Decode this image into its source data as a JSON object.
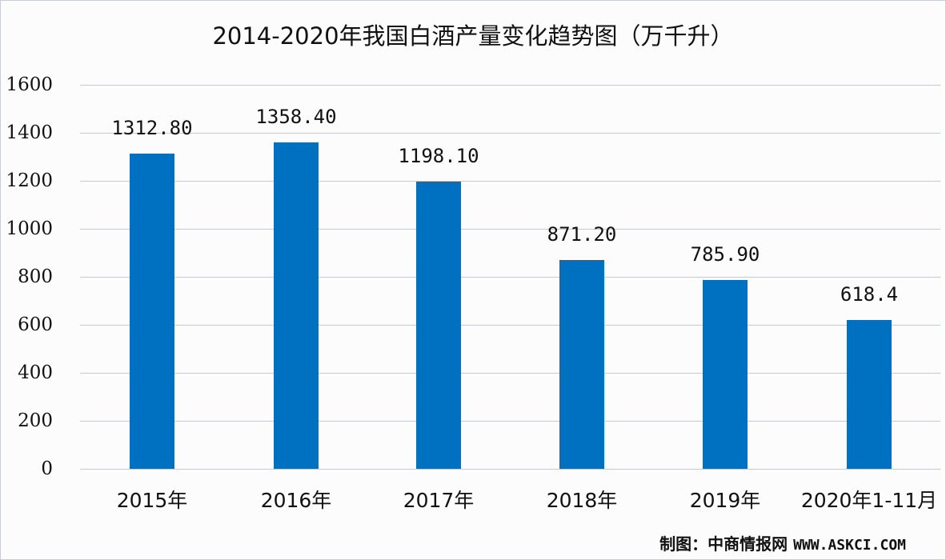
{
  "chart_data": {
    "type": "bar",
    "title": "2014-2020年我国白酒产量变化趋势图（万千升）",
    "xlabel": "",
    "ylabel": "",
    "ylim": [
      0,
      1600
    ],
    "yticks": [
      0,
      200,
      400,
      600,
      800,
      1000,
      1200,
      1400,
      1600
    ],
    "grid": true,
    "legend": null,
    "categories": [
      "2015年",
      "2016年",
      "2017年",
      "2018年",
      "2019年",
      "2020年1-11月"
    ],
    "values": [
      1312.8,
      1358.4,
      1198.1,
      871.2,
      785.9,
      618.4
    ],
    "value_labels": [
      "1312.80",
      "1358.40",
      "1198.10",
      "871.20",
      "785.90",
      "618.4"
    ],
    "bar_color": "#0070c0"
  },
  "source": {
    "label": "制图：中商情报网",
    "url": "WWW.ASKCI.COM"
  }
}
